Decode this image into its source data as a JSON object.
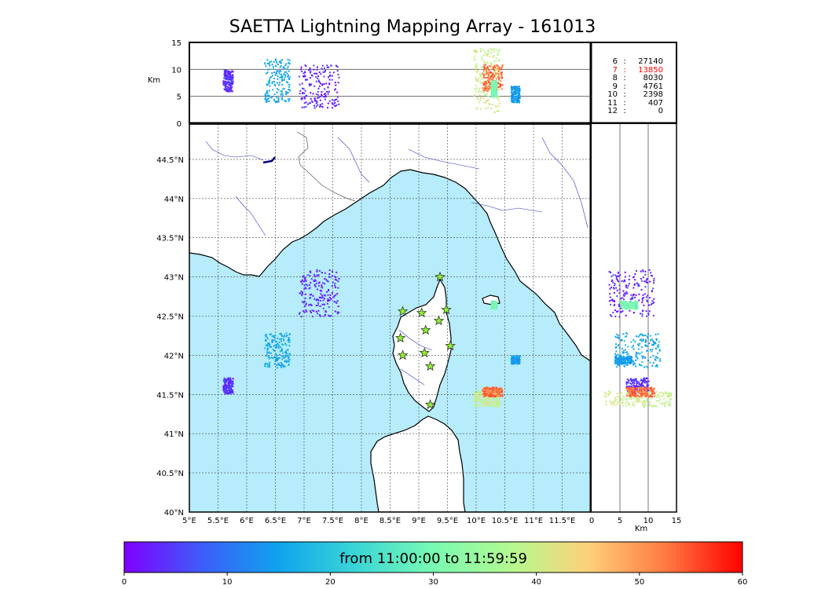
{
  "title": "SAETTA Lightning Mapping Array - 161013",
  "map": {
    "lon_range": [
      5,
      12.0
    ],
    "lat_range": [
      40,
      44.95
    ],
    "lon_ticks": [
      5,
      5.5,
      6,
      6.5,
      7,
      7.5,
      8,
      8.5,
      9,
      9.5,
      10,
      10.5,
      11,
      11.5
    ],
    "lon_tick_labels": [
      "5°E",
      "5.5°E",
      "6°E",
      "6.5°E",
      "7°E",
      "7.5°E",
      "8°E",
      "8.5°E",
      "9°E",
      "9.5°E",
      "10°E",
      "10.5°E",
      "11°E",
      "11.5°E"
    ],
    "lat_ticks": [
      40,
      40.5,
      41,
      41.5,
      42,
      42.5,
      43,
      43.5,
      44,
      44.5
    ],
    "lat_tick_labels": [
      "40°N",
      "40.5°N",
      "41°N",
      "41.5°N",
      "42°N",
      "42.5°N",
      "43°N",
      "43.5°N",
      "44°N",
      "44.5°N"
    ],
    "sea_color": "#b6ecfb",
    "land_color": "#ffffff",
    "river_color": "#3333cc",
    "grid": "dotted",
    "stations": [
      [
        9.37,
        43.0
      ],
      [
        8.72,
        42.56
      ],
      [
        9.05,
        42.54
      ],
      [
        9.48,
        42.58
      ],
      [
        9.35,
        42.44
      ],
      [
        9.12,
        42.32
      ],
      [
        8.68,
        42.22
      ],
      [
        9.55,
        42.12
      ],
      [
        8.72,
        42.0
      ],
      [
        9.1,
        42.03
      ],
      [
        9.2,
        41.86
      ],
      [
        9.2,
        41.37
      ]
    ]
  },
  "top_panel": {
    "ylabel": "Km",
    "y_ticks": [
      0,
      5,
      10,
      15
    ],
    "y_tick_labels": [
      "0",
      "5",
      "10",
      "15"
    ],
    "y_range": [
      0,
      15
    ],
    "ref_lines_km": [
      5,
      10
    ]
  },
  "right_panel": {
    "xlabel": "Km",
    "x_ticks": [
      0,
      5,
      10,
      15
    ],
    "x_tick_labels": [
      "0",
      "5",
      "10",
      "15"
    ],
    "x_range": [
      0,
      15
    ],
    "ref_lines_km": [
      5,
      10
    ]
  },
  "station_counts": [
    {
      "k": "6",
      "v": "27140",
      "highlight": false
    },
    {
      "k": "7",
      "v": "13850",
      "highlight": true
    },
    {
      "k": "8",
      "v": "8030",
      "highlight": false
    },
    {
      "k": "9",
      "v": "4761",
      "highlight": false
    },
    {
      "k": "10",
      "v": "2398",
      "highlight": false
    },
    {
      "k": "11",
      "v": "407",
      "highlight": false
    },
    {
      "k": "12",
      "v": "0",
      "highlight": false
    }
  ],
  "colorbar": {
    "caption": "from 11:00:00 to 11:59:59",
    "range": [
      0,
      60
    ],
    "ticks": [
      0,
      10,
      20,
      30,
      40,
      50,
      60
    ],
    "tick_labels": [
      "0",
      "10",
      "20",
      "30",
      "40",
      "50",
      "60"
    ],
    "colors": [
      "#7f00ff",
      "#3d5cfa",
      "#0fa3ec",
      "#3ad6d6",
      "#79fab3",
      "#b3fa8f",
      "#fdd17a",
      "#ff7a42",
      "#ff0000"
    ]
  },
  "chart_data": {
    "type": "scatter",
    "x_unit": "degrees longitude",
    "y_unit": "degrees latitude",
    "color_value": "minutes after 11:00:00",
    "clusters": [
      {
        "lon": [
          5.58,
          5.75
        ],
        "lat": [
          41.52,
          41.72
        ],
        "minute": 4,
        "alt_km": [
          6,
          10
        ]
      },
      {
        "lon": [
          6.3,
          6.75
        ],
        "lat": [
          41.85,
          42.3
        ],
        "minute": 16,
        "alt_km": [
          4,
          12
        ]
      },
      {
        "lon": [
          6.9,
          7.6
        ],
        "lat": [
          42.5,
          43.1
        ],
        "minute": 3,
        "alt_km": [
          3,
          11
        ]
      },
      {
        "lon": [
          9.95,
          10.4
        ],
        "lat": [
          41.35,
          41.55
        ],
        "minute": 40,
        "alt_km": [
          2,
          14
        ]
      },
      {
        "lon": [
          10.1,
          10.45
        ],
        "lat": [
          41.48,
          41.6
        ],
        "minute": 53,
        "alt_km": [
          6,
          11
        ]
      },
      {
        "lon": [
          10.6,
          10.75
        ],
        "lat": [
          41.9,
          42.0
        ],
        "minute": 15,
        "alt_km": [
          4,
          7
        ]
      },
      {
        "lon": [
          10.25,
          10.35
        ],
        "lat": [
          42.6,
          42.7
        ],
        "minute": 30,
        "alt_km": [
          5,
          8
        ]
      }
    ]
  }
}
